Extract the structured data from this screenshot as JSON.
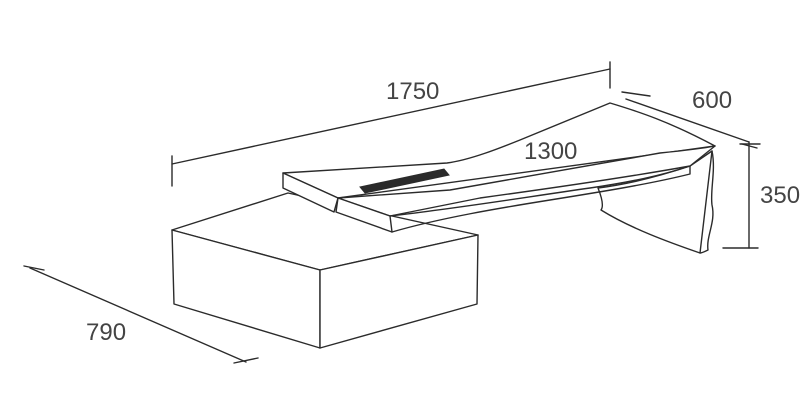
{
  "dimensions": {
    "total_length": "1750",
    "top_length": "1300",
    "depth": "600",
    "height": "350",
    "base_depth": "790"
  }
}
